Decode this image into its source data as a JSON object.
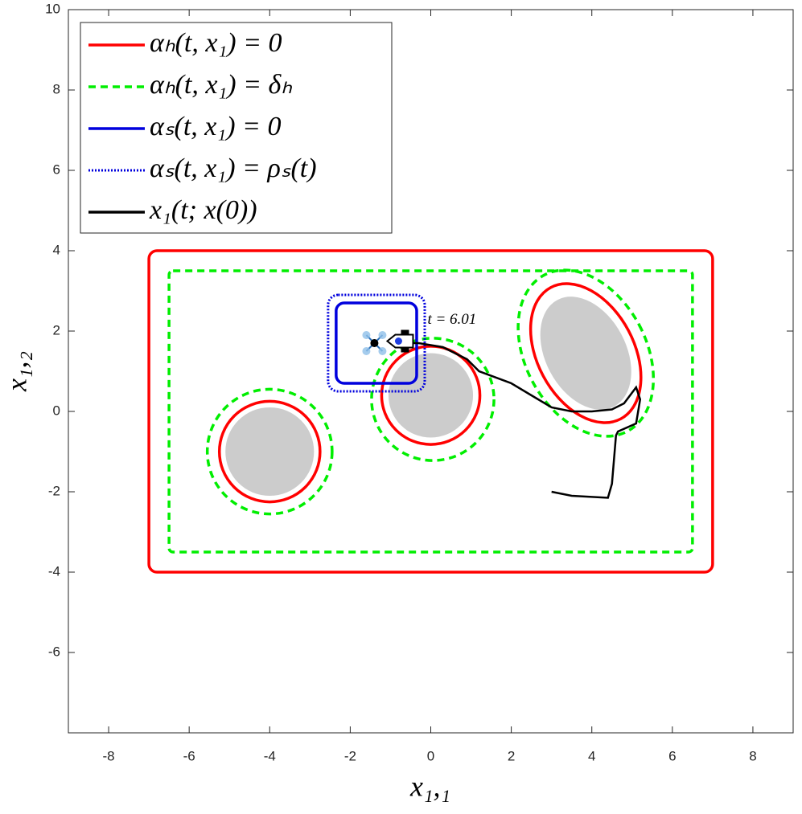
{
  "chart_data": {
    "type": "contour",
    "xlabel": "x₁,₁",
    "ylabel": "x₁,₂",
    "xlim": [
      -9,
      9
    ],
    "ylim": [
      -8,
      10
    ],
    "xticks": [
      -8,
      -6,
      -4,
      -2,
      0,
      2,
      4,
      6,
      8
    ],
    "yticks": [
      -6,
      -4,
      -2,
      0,
      2,
      4,
      6,
      8,
      10
    ],
    "annotation": "t = 6.01",
    "obstacle_color": "#cccccc",
    "obstacles": [
      {
        "cx": -4,
        "cy": -1,
        "rx": 1.1,
        "ry": 1.1,
        "angle": 0
      },
      {
        "cx": 0,
        "cy": 0.4,
        "rx": 1.05,
        "ry": 1.05,
        "angle": 0
      },
      {
        "cx": 3.85,
        "cy": 1.45,
        "rx": 1.0,
        "ry": 1.5,
        "angle": 28
      }
    ],
    "vehicle": {
      "x": -1.4,
      "y": 1.7
    },
    "target": {
      "x": -0.8,
      "y": 1.75
    },
    "legend": "upper left",
    "series": [
      {
        "name": "αₕ(t, x₁) = 0",
        "color": "#ff0000",
        "style": "solid",
        "shapes": [
          {
            "kind": "rect",
            "x": [
              -7,
              7
            ],
            "y": [
              -4,
              4
            ],
            "r": 0.2
          },
          {
            "kind": "ellipse",
            "cx": -4,
            "cy": -1,
            "rx": 1.25,
            "ry": 1.25,
            "angle": 0
          },
          {
            "kind": "ellipse",
            "cx": 0,
            "cy": 0.4,
            "rx": 1.22,
            "ry": 1.22,
            "angle": 0
          },
          {
            "kind": "ellipse",
            "cx": 3.85,
            "cy": 1.45,
            "rx": 1.2,
            "ry": 1.85,
            "angle": 28
          }
        ]
      },
      {
        "name": "αₕ(t, x₁) = δₕ",
        "color": "#00ee00",
        "style": "dashed",
        "shapes": [
          {
            "kind": "rect",
            "x": [
              -6.5,
              6.5
            ],
            "y": [
              -3.5,
              3.5
            ],
            "r": 0.1
          },
          {
            "kind": "ellipse",
            "cx": -4,
            "cy": -1,
            "rx": 1.55,
            "ry": 1.55,
            "angle": 0
          },
          {
            "kind": "ellipse",
            "cx": 0.05,
            "cy": 0.3,
            "rx": 1.52,
            "ry": 1.52,
            "angle": 0
          },
          {
            "kind": "ellipse",
            "cx": 3.85,
            "cy": 1.45,
            "rx": 1.5,
            "ry": 2.2,
            "angle": 28
          }
        ]
      },
      {
        "name": "αₛ(t, x₁) = 0",
        "color": "#0000dd",
        "style": "solid",
        "shapes": [
          {
            "kind": "rect",
            "x": [
              -2.35,
              -0.35
            ],
            "y": [
              0.7,
              2.7
            ],
            "r": 0.2
          }
        ]
      },
      {
        "name": "αₛ(t, x₁) = ρₛ(t)",
        "color": "#0000dd",
        "style": "dotted",
        "shapes": [
          {
            "kind": "rect",
            "x": [
              -2.55,
              -0.15
            ],
            "y": [
              0.5,
              2.9
            ],
            "r": 0.25
          }
        ]
      },
      {
        "name": "x₁(t; x(0))",
        "color": "#000000",
        "style": "solid",
        "x": [
          3,
          3.5,
          4.4,
          4.5,
          4.6,
          4.65,
          5.1,
          5.2,
          5.1,
          4.8,
          4.5,
          4.0,
          3.5,
          3.0,
          2.5,
          2.0,
          1.2,
          0.9,
          0.3,
          -0.3,
          -0.75
        ],
        "y": [
          -2,
          -2.1,
          -2.15,
          -1.8,
          -0.6,
          -0.5,
          -0.3,
          0.3,
          0.6,
          0.2,
          0.05,
          0,
          0,
          0.1,
          0.4,
          0.7,
          1.0,
          1.3,
          1.6,
          1.7,
          1.7
        ]
      }
    ]
  }
}
